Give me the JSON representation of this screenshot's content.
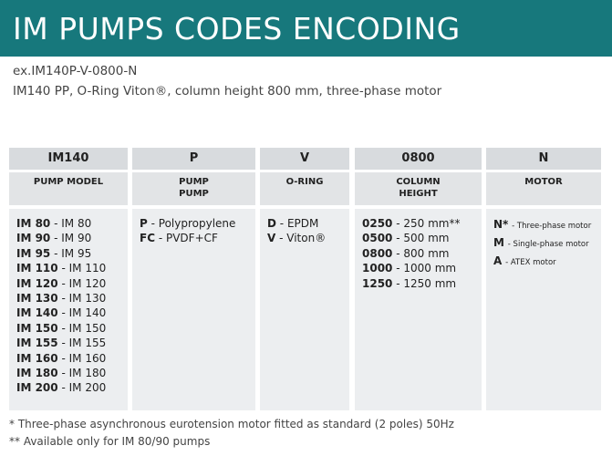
{
  "header": {
    "title": "IM PUMPS CODES ENCODING"
  },
  "example": {
    "code": "ex.IM140P-V-0800-N",
    "description": "IM140 PP, O-Ring Viton®, column height 800 mm, three-phase motor"
  },
  "columns": [
    {
      "code": "IM140",
      "heading": [
        "PUMP MODEL"
      ],
      "items": [
        {
          "code": "IM 80",
          "text": "- IM 80"
        },
        {
          "code": "IM 90",
          "text": "- IM 90"
        },
        {
          "code": "IM 95",
          "text": "- IM 95"
        },
        {
          "code": "IM 110",
          "text": "- IM 110"
        },
        {
          "code": "IM 120",
          "text": "- IM 120"
        },
        {
          "code": "IM 130",
          "text": "- IM 130"
        },
        {
          "code": "IM 140",
          "text": "- IM 140"
        },
        {
          "code": "IM 150",
          "text": "- IM 150"
        },
        {
          "code": "IM 155",
          "text": "- IM 155"
        },
        {
          "code": "IM 160",
          "text": "- IM 160"
        },
        {
          "code": "IM 180",
          "text": "- IM 180"
        },
        {
          "code": "IM 200",
          "text": "- IM 200"
        }
      ]
    },
    {
      "code": "P",
      "heading": [
        "PUMP",
        "PUMP"
      ],
      "items": [
        {
          "code": "P",
          "text": "- Polypropylene"
        },
        {
          "code": "FC",
          "text": "- PVDF+CF"
        }
      ]
    },
    {
      "code": "V",
      "heading": [
        "O-RING"
      ],
      "items": [
        {
          "code": "D",
          "text": "- EPDM"
        },
        {
          "code": "V",
          "text": "- Viton®"
        }
      ]
    },
    {
      "code": "0800",
      "heading": [
        "COLUMN",
        "HEIGHT"
      ],
      "items": [
        {
          "code": "0250",
          "text": "- 250 mm**"
        },
        {
          "code": "0500",
          "text": "- 500 mm"
        },
        {
          "code": "0800",
          "text": "- 800 mm"
        },
        {
          "code": "1000",
          "text": "- 1000 mm"
        },
        {
          "code": "1250",
          "text": "- 1250 mm"
        }
      ]
    },
    {
      "code": "N",
      "heading": [
        "MOTOR"
      ],
      "items": [
        {
          "code": "N*",
          "text": "- Three-phase motor"
        },
        {
          "code": "M",
          "text": "- Single-phase motor"
        },
        {
          "code": "A",
          "text": "- ATEX motor"
        }
      ]
    }
  ],
  "footnotes": [
    "* Three-phase asynchronous eurotension motor fitted as standard (2 poles) 50Hz",
    "** Available only for IM 80/90 pumps"
  ]
}
